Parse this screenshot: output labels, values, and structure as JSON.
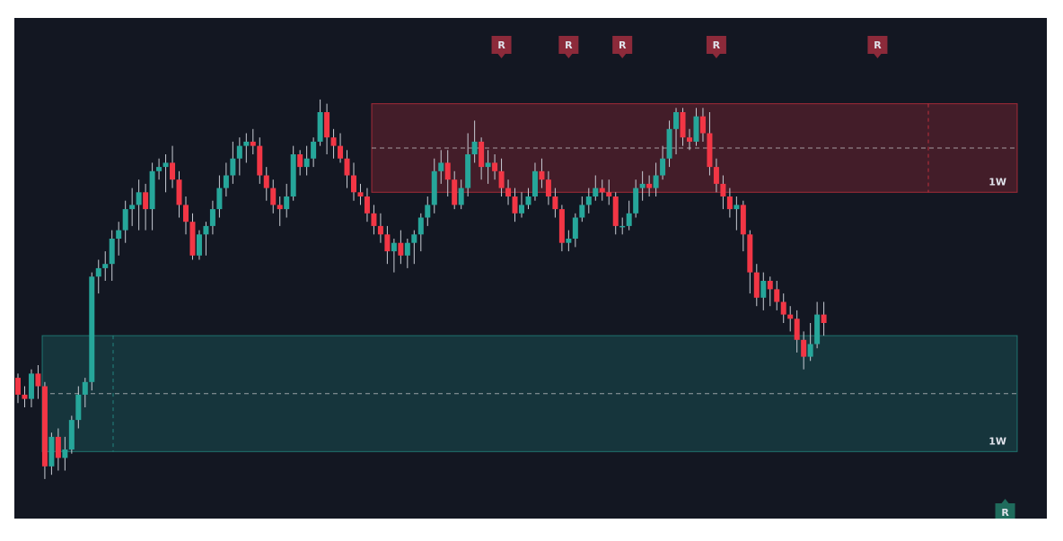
{
  "chart_data": {
    "type": "candlestick",
    "theme": {
      "background": "#131722",
      "up_color": "#26a69a",
      "down_color": "#f23645"
    },
    "ylim": [
      0,
      100
    ],
    "zones": [
      {
        "name": "resistance",
        "label": "1W",
        "low": 71,
        "high": 92,
        "color": "#f23645"
      },
      {
        "name": "support",
        "label": "1W",
        "low": 9.5,
        "high": 37,
        "color": "#26a69a"
      }
    ],
    "markers": [
      {
        "text": "R",
        "type": "resistance",
        "x": 72
      },
      {
        "text": "R",
        "type": "resistance",
        "x": 82
      },
      {
        "text": "R",
        "type": "resistance",
        "x": 90
      },
      {
        "text": "R",
        "type": "resistance",
        "x": 104
      },
      {
        "text": "R",
        "type": "resistance",
        "x": 128
      },
      {
        "text": "R",
        "type": "support",
        "x": 147
      }
    ],
    "candles": [
      [
        27,
        23,
        28,
        21
      ],
      [
        23,
        22,
        25,
        20
      ],
      [
        22,
        28,
        29,
        20
      ],
      [
        28,
        25,
        30,
        22
      ],
      [
        25,
        6,
        26,
        3
      ],
      [
        6,
        13,
        14,
        4
      ],
      [
        13,
        8,
        15,
        5
      ],
      [
        8,
        10,
        13,
        5
      ],
      [
        10,
        17,
        18,
        9
      ],
      [
        17,
        23,
        25,
        15
      ],
      [
        23,
        26,
        27,
        20
      ],
      [
        26,
        51,
        52,
        24
      ],
      [
        51,
        53,
        55,
        47
      ],
      [
        53,
        54,
        57,
        50
      ],
      [
        54,
        60,
        62,
        50
      ],
      [
        60,
        62,
        64,
        56
      ],
      [
        62,
        67,
        69,
        59
      ],
      [
        67,
        68,
        72,
        63
      ],
      [
        68,
        71,
        74,
        62
      ],
      [
        71,
        67,
        73,
        62
      ],
      [
        67,
        76,
        78,
        62
      ],
      [
        76,
        77,
        79,
        74
      ],
      [
        77,
        78,
        80,
        71
      ],
      [
        78,
        74,
        82,
        72
      ],
      [
        74,
        68,
        76,
        65
      ],
      [
        68,
        64,
        70,
        61
      ],
      [
        64,
        56,
        66,
        55
      ],
      [
        56,
        61,
        62,
        55
      ],
      [
        61,
        63,
        64,
        56
      ],
      [
        63,
        67,
        69,
        61
      ],
      [
        67,
        72,
        75,
        65
      ],
      [
        72,
        75,
        78,
        70
      ],
      [
        75,
        79,
        83,
        73
      ],
      [
        79,
        82,
        84,
        75
      ],
      [
        82,
        83,
        85,
        78
      ],
      [
        83,
        82,
        86,
        80
      ],
      [
        82,
        75,
        84,
        73
      ],
      [
        75,
        72,
        77,
        69
      ],
      [
        72,
        68,
        74,
        66
      ],
      [
        68,
        67,
        70,
        63
      ],
      [
        67,
        70,
        73,
        65
      ],
      [
        70,
        80,
        82,
        69
      ],
      [
        80,
        77,
        81,
        75
      ],
      [
        77,
        79,
        82,
        75
      ],
      [
        79,
        83,
        84,
        77
      ],
      [
        83,
        90,
        93,
        82
      ],
      [
        90,
        84,
        92,
        80
      ],
      [
        84,
        82,
        86,
        79
      ],
      [
        82,
        79,
        85,
        78
      ],
      [
        79,
        75,
        81,
        72
      ],
      [
        75,
        71,
        78,
        69
      ],
      [
        71,
        70,
        73,
        68
      ],
      [
        70,
        66,
        72,
        64
      ],
      [
        66,
        63,
        68,
        61
      ],
      [
        63,
        61,
        66,
        59
      ],
      [
        61,
        57,
        63,
        54
      ],
      [
        57,
        59,
        60,
        52
      ],
      [
        59,
        56,
        62,
        54
      ],
      [
        56,
        59,
        60,
        53
      ],
      [
        59,
        61,
        62,
        54
      ],
      [
        61,
        65,
        66,
        57
      ],
      [
        65,
        68,
        70,
        63
      ],
      [
        68,
        76,
        79,
        66
      ],
      [
        76,
        78,
        81,
        73
      ],
      [
        78,
        74,
        81,
        70
      ],
      [
        74,
        68,
        76,
        67
      ],
      [
        68,
        72,
        74,
        67
      ],
      [
        72,
        80,
        85,
        70
      ],
      [
        80,
        83,
        88,
        78
      ],
      [
        83,
        77,
        84,
        74
      ],
      [
        77,
        78,
        81,
        73
      ],
      [
        78,
        76,
        80,
        74
      ],
      [
        76,
        72,
        79,
        70
      ],
      [
        72,
        70,
        74,
        68
      ],
      [
        70,
        66,
        72,
        64
      ],
      [
        66,
        68,
        71,
        65
      ],
      [
        68,
        70,
        72,
        67
      ],
      [
        70,
        76,
        78,
        69
      ],
      [
        76,
        74,
        79,
        72
      ],
      [
        74,
        70,
        76,
        68
      ],
      [
        70,
        67,
        72,
        65
      ],
      [
        67,
        59,
        68,
        57
      ],
      [
        59,
        60,
        62,
        57
      ],
      [
        60,
        65,
        66,
        58
      ],
      [
        65,
        68,
        70,
        64
      ],
      [
        68,
        70,
        72,
        66
      ],
      [
        70,
        72,
        75,
        69
      ],
      [
        72,
        71,
        74,
        69
      ],
      [
        71,
        70,
        74,
        68
      ],
      [
        70,
        63,
        71,
        61
      ],
      [
        63,
        63,
        65,
        61
      ],
      [
        63,
        66,
        69,
        62
      ],
      [
        66,
        72,
        74,
        65
      ],
      [
        72,
        73,
        76,
        69
      ],
      [
        73,
        72,
        75,
        70
      ],
      [
        72,
        75,
        78,
        70
      ],
      [
        75,
        79,
        82,
        74
      ],
      [
        79,
        86,
        88,
        77
      ],
      [
        86,
        90,
        91,
        80
      ],
      [
        90,
        84,
        91,
        82
      ],
      [
        84,
        83,
        86,
        81
      ],
      [
        83,
        89,
        91,
        82
      ],
      [
        89,
        85,
        91,
        83
      ],
      [
        85,
        77,
        90,
        75
      ],
      [
        77,
        73,
        79,
        71
      ],
      [
        73,
        70,
        75,
        67
      ],
      [
        70,
        67,
        72,
        65
      ],
      [
        67,
        68,
        70,
        62
      ],
      [
        68,
        61,
        69,
        57
      ],
      [
        61,
        52,
        62,
        47
      ],
      [
        52,
        46,
        54,
        44
      ],
      [
        46,
        50,
        52,
        43
      ],
      [
        50,
        48,
        51,
        44
      ],
      [
        48,
        45,
        50,
        43
      ],
      [
        45,
        42,
        47,
        40
      ],
      [
        42,
        41,
        44,
        38
      ],
      [
        41,
        36,
        43,
        33
      ],
      [
        36,
        32,
        38,
        29
      ],
      [
        32,
        35,
        40,
        31
      ],
      [
        35,
        42,
        45,
        34
      ],
      [
        42,
        40,
        45,
        37
      ]
    ]
  }
}
